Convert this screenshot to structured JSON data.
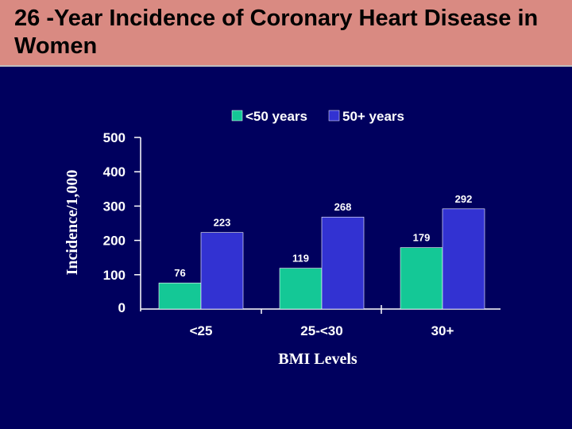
{
  "slide": {
    "title": "26 -Year Incidence of Coronary Heart Disease in Women"
  },
  "colors": {
    "background": "#00005e",
    "title_bar": "#d98a82",
    "series_under50": "#14c896",
    "series_50plus": "#3232d2",
    "axis": "#ffffff"
  },
  "chart_data": {
    "type": "bar",
    "title": "26 -Year Incidence of Coronary Heart Disease in Women",
    "xlabel": "BMI Levels",
    "ylabel": "Incidence/1,000",
    "categories": [
      "<25",
      "25-<30",
      "30+"
    ],
    "series": [
      {
        "name": "<50 years",
        "values": [
          76,
          119,
          179
        ],
        "value_labels": [
          "76",
          "119",
          "179"
        ]
      },
      {
        "name": "50+ years",
        "values": [
          223,
          268,
          292
        ],
        "value_labels": [
          "223",
          "268",
          "292"
        ]
      }
    ],
    "ylim": [
      0,
      500
    ],
    "yticks": [
      0,
      100,
      200,
      300,
      400,
      500
    ],
    "ytick_labels": [
      "0",
      "100",
      "200",
      "300",
      "400",
      "500"
    ],
    "grid": false,
    "legend": "top"
  }
}
